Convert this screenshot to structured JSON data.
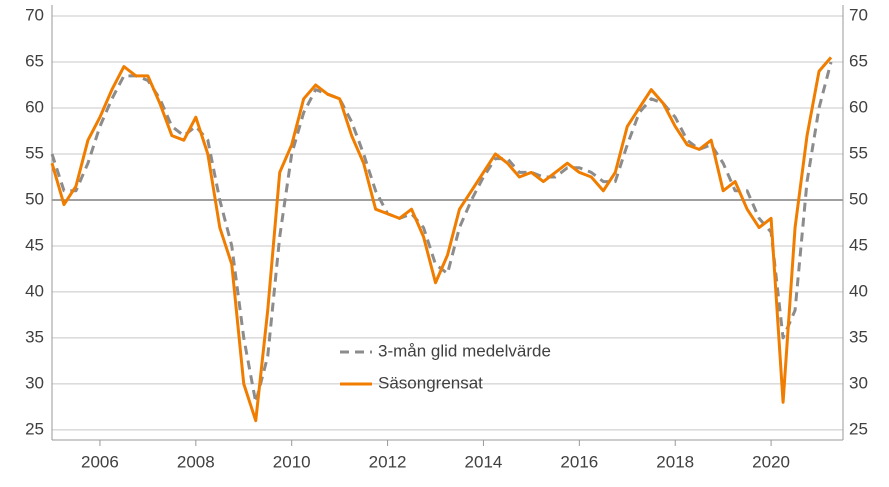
{
  "chart_data": {
    "type": "line",
    "x": [
      2005.0,
      2005.25,
      2005.5,
      2005.75,
      2006.0,
      2006.25,
      2006.5,
      2006.75,
      2007.0,
      2007.25,
      2007.5,
      2007.75,
      2008.0,
      2008.25,
      2008.5,
      2008.75,
      2009.0,
      2009.25,
      2009.5,
      2009.75,
      2010.0,
      2010.25,
      2010.5,
      2010.75,
      2011.0,
      2011.25,
      2011.5,
      2011.75,
      2012.0,
      2012.25,
      2012.5,
      2012.75,
      2013.0,
      2013.25,
      2013.5,
      2013.75,
      2014.0,
      2014.25,
      2014.5,
      2014.75,
      2015.0,
      2015.25,
      2015.5,
      2015.75,
      2016.0,
      2016.25,
      2016.5,
      2016.75,
      2017.0,
      2017.25,
      2017.5,
      2017.75,
      2018.0,
      2018.25,
      2018.5,
      2018.75,
      2019.0,
      2019.25,
      2019.5,
      2019.75,
      2020.0,
      2020.25,
      2020.5,
      2020.75,
      2021.0,
      2021.25
    ],
    "series": [
      {
        "name": "3-mån glid medelvärde",
        "color": "#8c8c8c",
        "dash": true,
        "values": [
          55,
          51,
          51,
          54,
          58,
          61,
          63.5,
          63.5,
          63,
          61,
          58,
          57,
          58,
          56.5,
          50,
          45,
          35,
          28,
          33,
          46,
          55,
          59.5,
          62,
          61.5,
          61,
          58.5,
          55,
          51,
          48.5,
          48,
          48.5,
          47,
          43,
          42,
          47,
          50,
          52.5,
          54.5,
          54.5,
          53,
          53,
          52.5,
          52.5,
          53.5,
          53.5,
          53,
          52,
          52,
          56,
          59.5,
          61,
          60.5,
          59,
          56.5,
          55.5,
          56,
          54,
          51,
          51,
          48,
          46.5,
          35,
          38,
          52,
          60,
          65
        ]
      },
      {
        "name": "Säsongrensat",
        "color": "#f07d00",
        "dash": false,
        "values": [
          54,
          49.5,
          51.5,
          56.5,
          59,
          62,
          64.5,
          63.5,
          63.5,
          60.5,
          57,
          56.5,
          59,
          55,
          47,
          43,
          30,
          26,
          38,
          53,
          56,
          61,
          62.5,
          61.5,
          61,
          57,
          54,
          49,
          48.5,
          48,
          49,
          46,
          41,
          44,
          49,
          51,
          53,
          55,
          54,
          52.5,
          53,
          52,
          53,
          54,
          53,
          52.5,
          51,
          53,
          58,
          60,
          62,
          60.5,
          58,
          56,
          55.5,
          56.5,
          51,
          52,
          49,
          47,
          48,
          28,
          47,
          57,
          64,
          65.5
        ]
      }
    ],
    "xlim": [
      2005,
      2021.5
    ],
    "xticks": [
      2006,
      2008,
      2010,
      2012,
      2014,
      2016,
      2018,
      2020
    ],
    "ylim": [
      23.9,
      71.2
    ],
    "yticks": [
      25,
      30,
      35,
      40,
      45,
      50,
      55,
      60,
      65,
      70
    ],
    "hline": 50,
    "grid": true
  }
}
